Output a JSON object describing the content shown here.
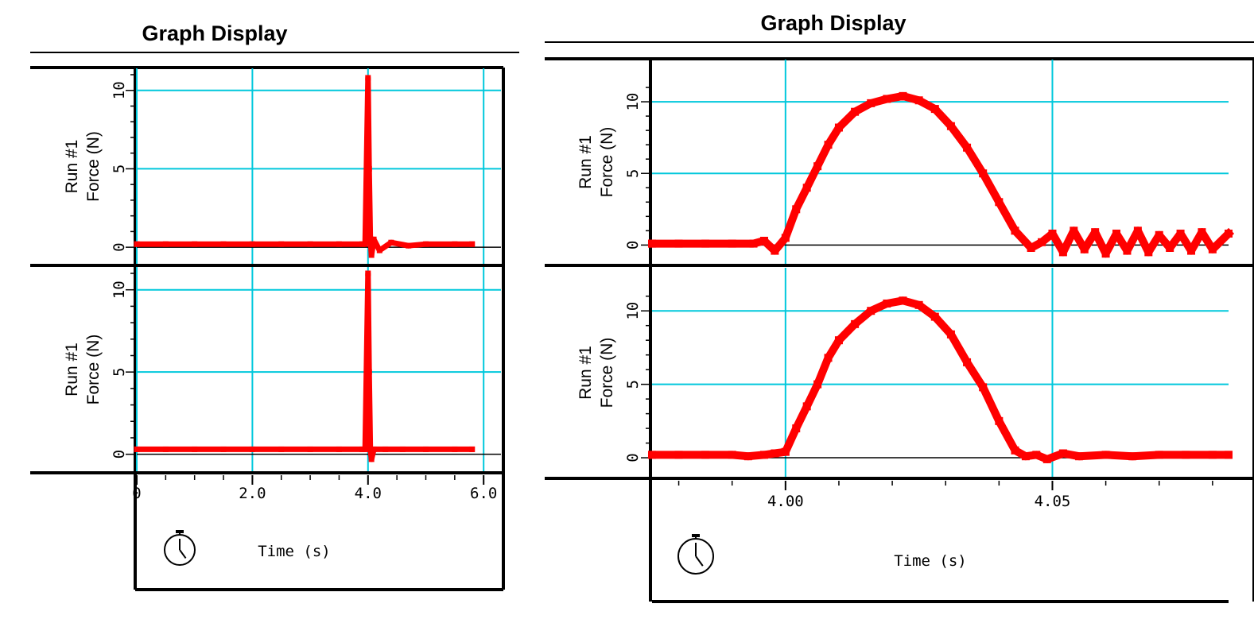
{
  "panels": [
    {
      "title": "Graph Display",
      "x_label": "Time (s)",
      "x_ticks": [
        "0",
        "2.0",
        "4.0",
        "6.0"
      ],
      "y_ticks": [
        "0",
        "5",
        "10"
      ],
      "plots": [
        {
          "y_label_line1": "Run #1",
          "y_label_line2": "Force (N)"
        },
        {
          "y_label_line1": "Run #1",
          "y_label_line2": "Force (N)"
        }
      ]
    },
    {
      "title": "Graph Display",
      "x_label": "Time (s)",
      "x_ticks": [
        "4.00",
        "4.05"
      ],
      "y_ticks": [
        "0",
        "5",
        "10"
      ],
      "plots": [
        {
          "y_label_line1": "Run #1",
          "y_label_line2": "Force (N)"
        },
        {
          "y_label_line1": "Run #1",
          "y_label_line2": "Force (N)"
        }
      ]
    }
  ],
  "colors": {
    "data": "#ff0000",
    "grid": "#00c8dc",
    "axis": "#000000"
  },
  "icons": [
    "stopwatch-icon",
    "stopwatch-icon"
  ],
  "chart_data": [
    {
      "type": "line",
      "title": "Graph Display",
      "xlabel": "Time (s)",
      "ylabel": "Force (N)",
      "xlim": [
        0,
        6.3
      ],
      "ylim": [
        -0.5,
        11
      ],
      "grid": true,
      "series": [
        {
          "name": "Run #1",
          "x": [
            0,
            0.5,
            1.0,
            1.5,
            2.0,
            2.5,
            3.0,
            3.5,
            3.9,
            3.95,
            4.0,
            4.02,
            4.04,
            4.06,
            4.1,
            4.2,
            4.4,
            4.7,
            5.0,
            5.5,
            5.8
          ],
          "y": [
            0.2,
            0.2,
            0.2,
            0.2,
            0.2,
            0.2,
            0.2,
            0.2,
            0.2,
            0.2,
            10.8,
            5.0,
            0.5,
            -0.5,
            0.5,
            -0.2,
            0.3,
            0.1,
            0.2,
            0.2,
            0.2
          ]
        },
        {
          "name": "Run #1",
          "x": [
            0,
            0.5,
            1.0,
            1.5,
            2.0,
            2.5,
            3.0,
            3.5,
            3.9,
            3.95,
            4.0,
            4.02,
            4.04,
            4.06,
            4.1,
            4.3,
            4.6,
            5.0,
            5.5,
            5.8
          ],
          "y": [
            0.3,
            0.3,
            0.3,
            0.3,
            0.3,
            0.3,
            0.3,
            0.3,
            0.3,
            0.3,
            11.0,
            5.0,
            0.3,
            -0.3,
            0.3,
            0.3,
            0.3,
            0.3,
            0.3,
            0.3
          ]
        }
      ]
    },
    {
      "type": "line",
      "title": "Graph Display",
      "xlabel": "Time (s)",
      "ylabel": "Force (N)",
      "xlim": [
        3.975,
        4.083
      ],
      "ylim": [
        -0.7,
        12.5
      ],
      "grid": true,
      "series": [
        {
          "name": "Run #1",
          "x": [
            3.975,
            3.98,
            3.985,
            3.99,
            3.994,
            3.996,
            3.998,
            4.0,
            4.002,
            4.004,
            4.006,
            4.008,
            4.01,
            4.013,
            4.016,
            4.019,
            4.022,
            4.025,
            4.028,
            4.031,
            4.034,
            4.037,
            4.04,
            4.043,
            4.046,
            4.048,
            4.05,
            4.052,
            4.054,
            4.056,
            4.058,
            4.06,
            4.062,
            4.064,
            4.066,
            4.068,
            4.07,
            4.072,
            4.074,
            4.076,
            4.078,
            4.08,
            4.083
          ],
          "y": [
            0.1,
            0.1,
            0.1,
            0.1,
            0.1,
            0.3,
            -0.4,
            0.5,
            2.5,
            4.0,
            5.5,
            7.0,
            8.2,
            9.3,
            9.9,
            10.2,
            10.4,
            10.1,
            9.5,
            8.3,
            6.8,
            5.0,
            3.0,
            1.0,
            -0.2,
            0.2,
            0.8,
            -0.5,
            1.0,
            -0.3,
            0.9,
            -0.6,
            0.8,
            -0.4,
            1.0,
            -0.5,
            0.7,
            -0.2,
            0.8,
            -0.4,
            0.9,
            -0.3,
            0.8
          ]
        },
        {
          "name": "Run #1",
          "x": [
            3.975,
            3.98,
            3.985,
            3.99,
            3.993,
            3.996,
            3.998,
            4.0,
            4.002,
            4.004,
            4.006,
            4.008,
            4.01,
            4.013,
            4.016,
            4.019,
            4.022,
            4.025,
            4.028,
            4.031,
            4.034,
            4.037,
            4.04,
            4.043,
            4.045,
            4.047,
            4.049,
            4.052,
            4.055,
            4.06,
            4.065,
            4.07,
            4.075,
            4.08,
            4.083
          ],
          "y": [
            0.2,
            0.2,
            0.2,
            0.2,
            0.1,
            0.2,
            0.3,
            0.4,
            2.0,
            3.5,
            5.0,
            6.8,
            8.0,
            9.1,
            10.0,
            10.5,
            10.7,
            10.4,
            9.6,
            8.4,
            6.5,
            4.8,
            2.5,
            0.5,
            0.1,
            0.2,
            -0.1,
            0.3,
            0.1,
            0.2,
            0.1,
            0.2,
            0.2,
            0.2,
            0.2
          ]
        }
      ]
    }
  ]
}
